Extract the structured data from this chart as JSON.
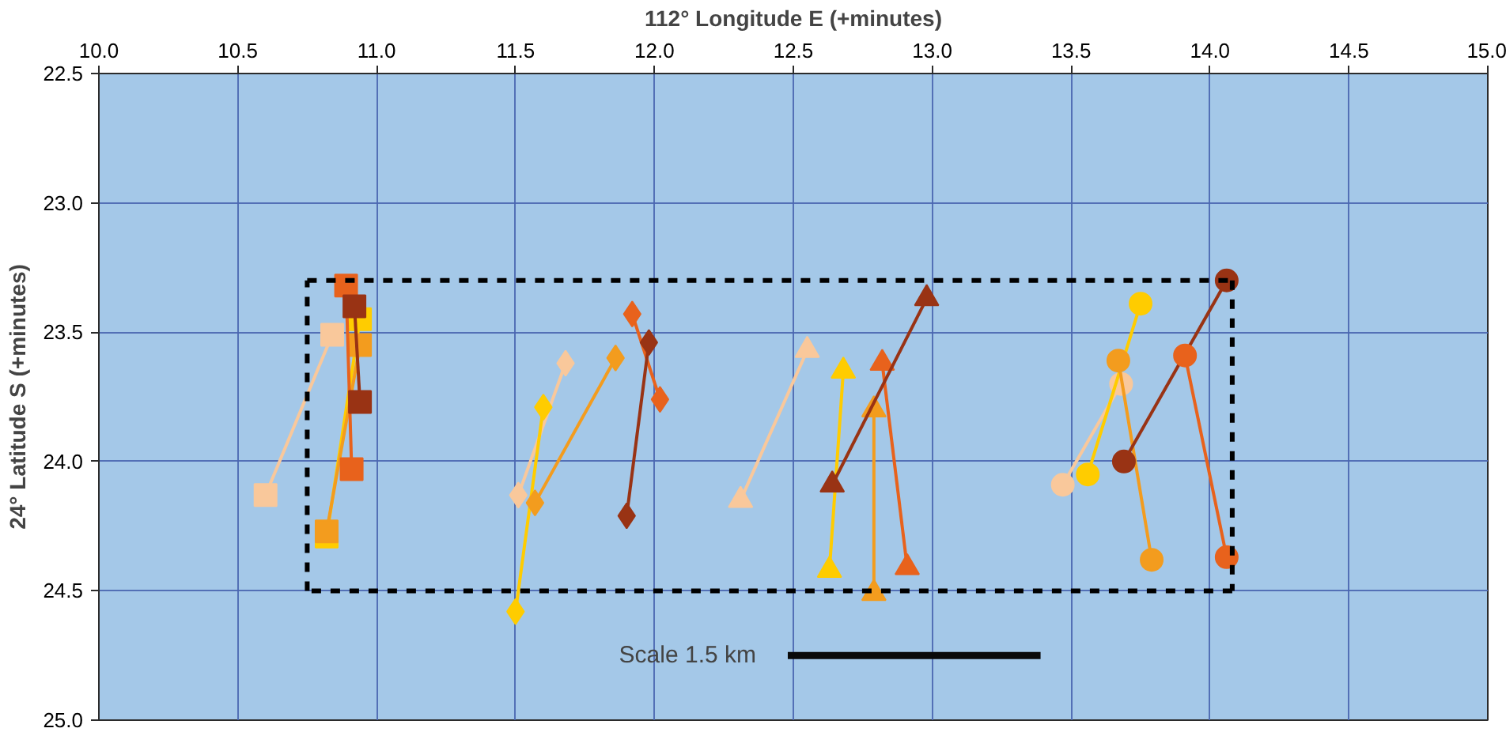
{
  "chart_data": {
    "type": "line",
    "xlabel": "112° Longitude E (+minutes)",
    "ylabel": "24° Latitude S (+minutes)",
    "xlim": [
      10.0,
      15.0
    ],
    "ylim": [
      25.0,
      22.5
    ],
    "xticks": [
      {
        "value": 10.0,
        "label": "10.0"
      },
      {
        "value": 10.5,
        "label": "10.5"
      },
      {
        "value": 11.0,
        "label": "11.0"
      },
      {
        "value": 11.5,
        "label": "11.5"
      },
      {
        "value": 12.0,
        "label": "12.0"
      },
      {
        "value": 12.5,
        "label": "12.5"
      },
      {
        "value": 13.0,
        "label": "13.0"
      },
      {
        "value": 13.5,
        "label": "13.5"
      },
      {
        "value": 14.0,
        "label": "14.0"
      },
      {
        "value": 14.5,
        "label": "14.5"
      },
      {
        "value": 15.0,
        "label": "15.0"
      }
    ],
    "yticks": [
      {
        "value": 22.5,
        "label": "22.5"
      },
      {
        "value": 23.0,
        "label": "23.0"
      },
      {
        "value": 23.5,
        "label": "23.5"
      },
      {
        "value": 24.0,
        "label": "24.0"
      },
      {
        "value": 24.5,
        "label": "24.5"
      },
      {
        "value": 25.0,
        "label": "25.0"
      }
    ],
    "grid": true,
    "series": [
      {
        "marker": "square",
        "color": "#f9c89b",
        "x": [
          10.6,
          10.84
        ],
        "values": [
          24.13,
          23.51
        ]
      },
      {
        "marker": "square",
        "color": "#ffcc00",
        "x": [
          10.82,
          10.94
        ],
        "values": [
          24.29,
          23.45
        ]
      },
      {
        "marker": "square",
        "color": "#f39c1e",
        "x": [
          10.82,
          10.94
        ],
        "values": [
          24.27,
          23.55
        ]
      },
      {
        "marker": "square",
        "color": "#e8621c",
        "x": [
          10.89,
          10.91
        ],
        "values": [
          23.32,
          24.03
        ]
      },
      {
        "marker": "square",
        "color": "#993314",
        "x": [
          10.92,
          10.94
        ],
        "values": [
          23.4,
          23.77
        ]
      },
      {
        "marker": "diamond",
        "color": "#f9c89b",
        "x": [
          11.51,
          11.68
        ],
        "values": [
          24.13,
          23.62
        ]
      },
      {
        "marker": "diamond",
        "color": "#ffcc00",
        "x": [
          11.5,
          11.6
        ],
        "values": [
          24.58,
          23.79
        ]
      },
      {
        "marker": "diamond",
        "color": "#f39c1e",
        "x": [
          11.57,
          11.86
        ],
        "values": [
          24.16,
          23.6
        ]
      },
      {
        "marker": "diamond",
        "color": "#e8621c",
        "x": [
          11.92,
          12.02
        ],
        "values": [
          23.43,
          23.76
        ]
      },
      {
        "marker": "diamond",
        "color": "#993314",
        "x": [
          11.9,
          11.98
        ],
        "values": [
          24.21,
          23.54
        ]
      },
      {
        "marker": "triangle",
        "color": "#f9c89b",
        "x": [
          12.31,
          12.55
        ],
        "values": [
          24.15,
          23.57
        ]
      },
      {
        "marker": "triangle",
        "color": "#ffcc00",
        "x": [
          12.63,
          12.68
        ],
        "values": [
          24.42,
          23.65
        ]
      },
      {
        "marker": "triangle",
        "color": "#f39c1e",
        "x": [
          12.79,
          12.79
        ],
        "values": [
          23.8,
          24.51
        ]
      },
      {
        "marker": "triangle",
        "color": "#e8621c",
        "x": [
          12.82,
          12.91
        ],
        "values": [
          23.62,
          24.41
        ]
      },
      {
        "marker": "triangle",
        "color": "#993314",
        "x": [
          12.64,
          12.98
        ],
        "values": [
          24.09,
          23.37
        ]
      },
      {
        "marker": "circle",
        "color": "#f9c89b",
        "x": [
          13.47,
          13.68
        ],
        "values": [
          24.09,
          23.7
        ]
      },
      {
        "marker": "circle",
        "color": "#ffcc00",
        "x": [
          13.56,
          13.75
        ],
        "values": [
          24.05,
          23.39
        ]
      },
      {
        "marker": "circle",
        "color": "#f39c1e",
        "x": [
          13.67,
          13.79
        ],
        "values": [
          23.61,
          24.38
        ]
      },
      {
        "marker": "circle",
        "color": "#993314",
        "x": [
          13.69,
          14.06
        ],
        "values": [
          24.0,
          23.3
        ]
      },
      {
        "marker": "circle",
        "color": "#e8621c",
        "x": [
          13.91,
          14.06
        ],
        "values": [
          23.59,
          24.37
        ]
      },
      {
        "marker": "none",
        "line_style": "dashed",
        "color": "#000000",
        "x": [
          10.75,
          14.08
        ],
        "values": [
          23.3,
          23.3
        ]
      },
      {
        "marker": "none",
        "line_style": "dashed",
        "color": "#000000",
        "x": [
          14.08,
          14.08
        ],
        "values": [
          23.3,
          24.5
        ]
      },
      {
        "marker": "none",
        "line_style": "dashed",
        "color": "#000000",
        "x": [
          14.08,
          10.75
        ],
        "values": [
          24.5,
          24.5
        ]
      },
      {
        "marker": "none",
        "line_style": "dashed",
        "color": "#000000",
        "x": [
          10.75,
          10.75
        ],
        "values": [
          24.5,
          23.3
        ]
      },
      {
        "marker": "none",
        "line_style": "solid",
        "color": "#0a0a0a",
        "x": [
          12.48,
          13.39
        ],
        "values": [
          24.75,
          24.75
        ]
      }
    ],
    "annotations": [
      "Scale 1.5 km"
    ]
  }
}
